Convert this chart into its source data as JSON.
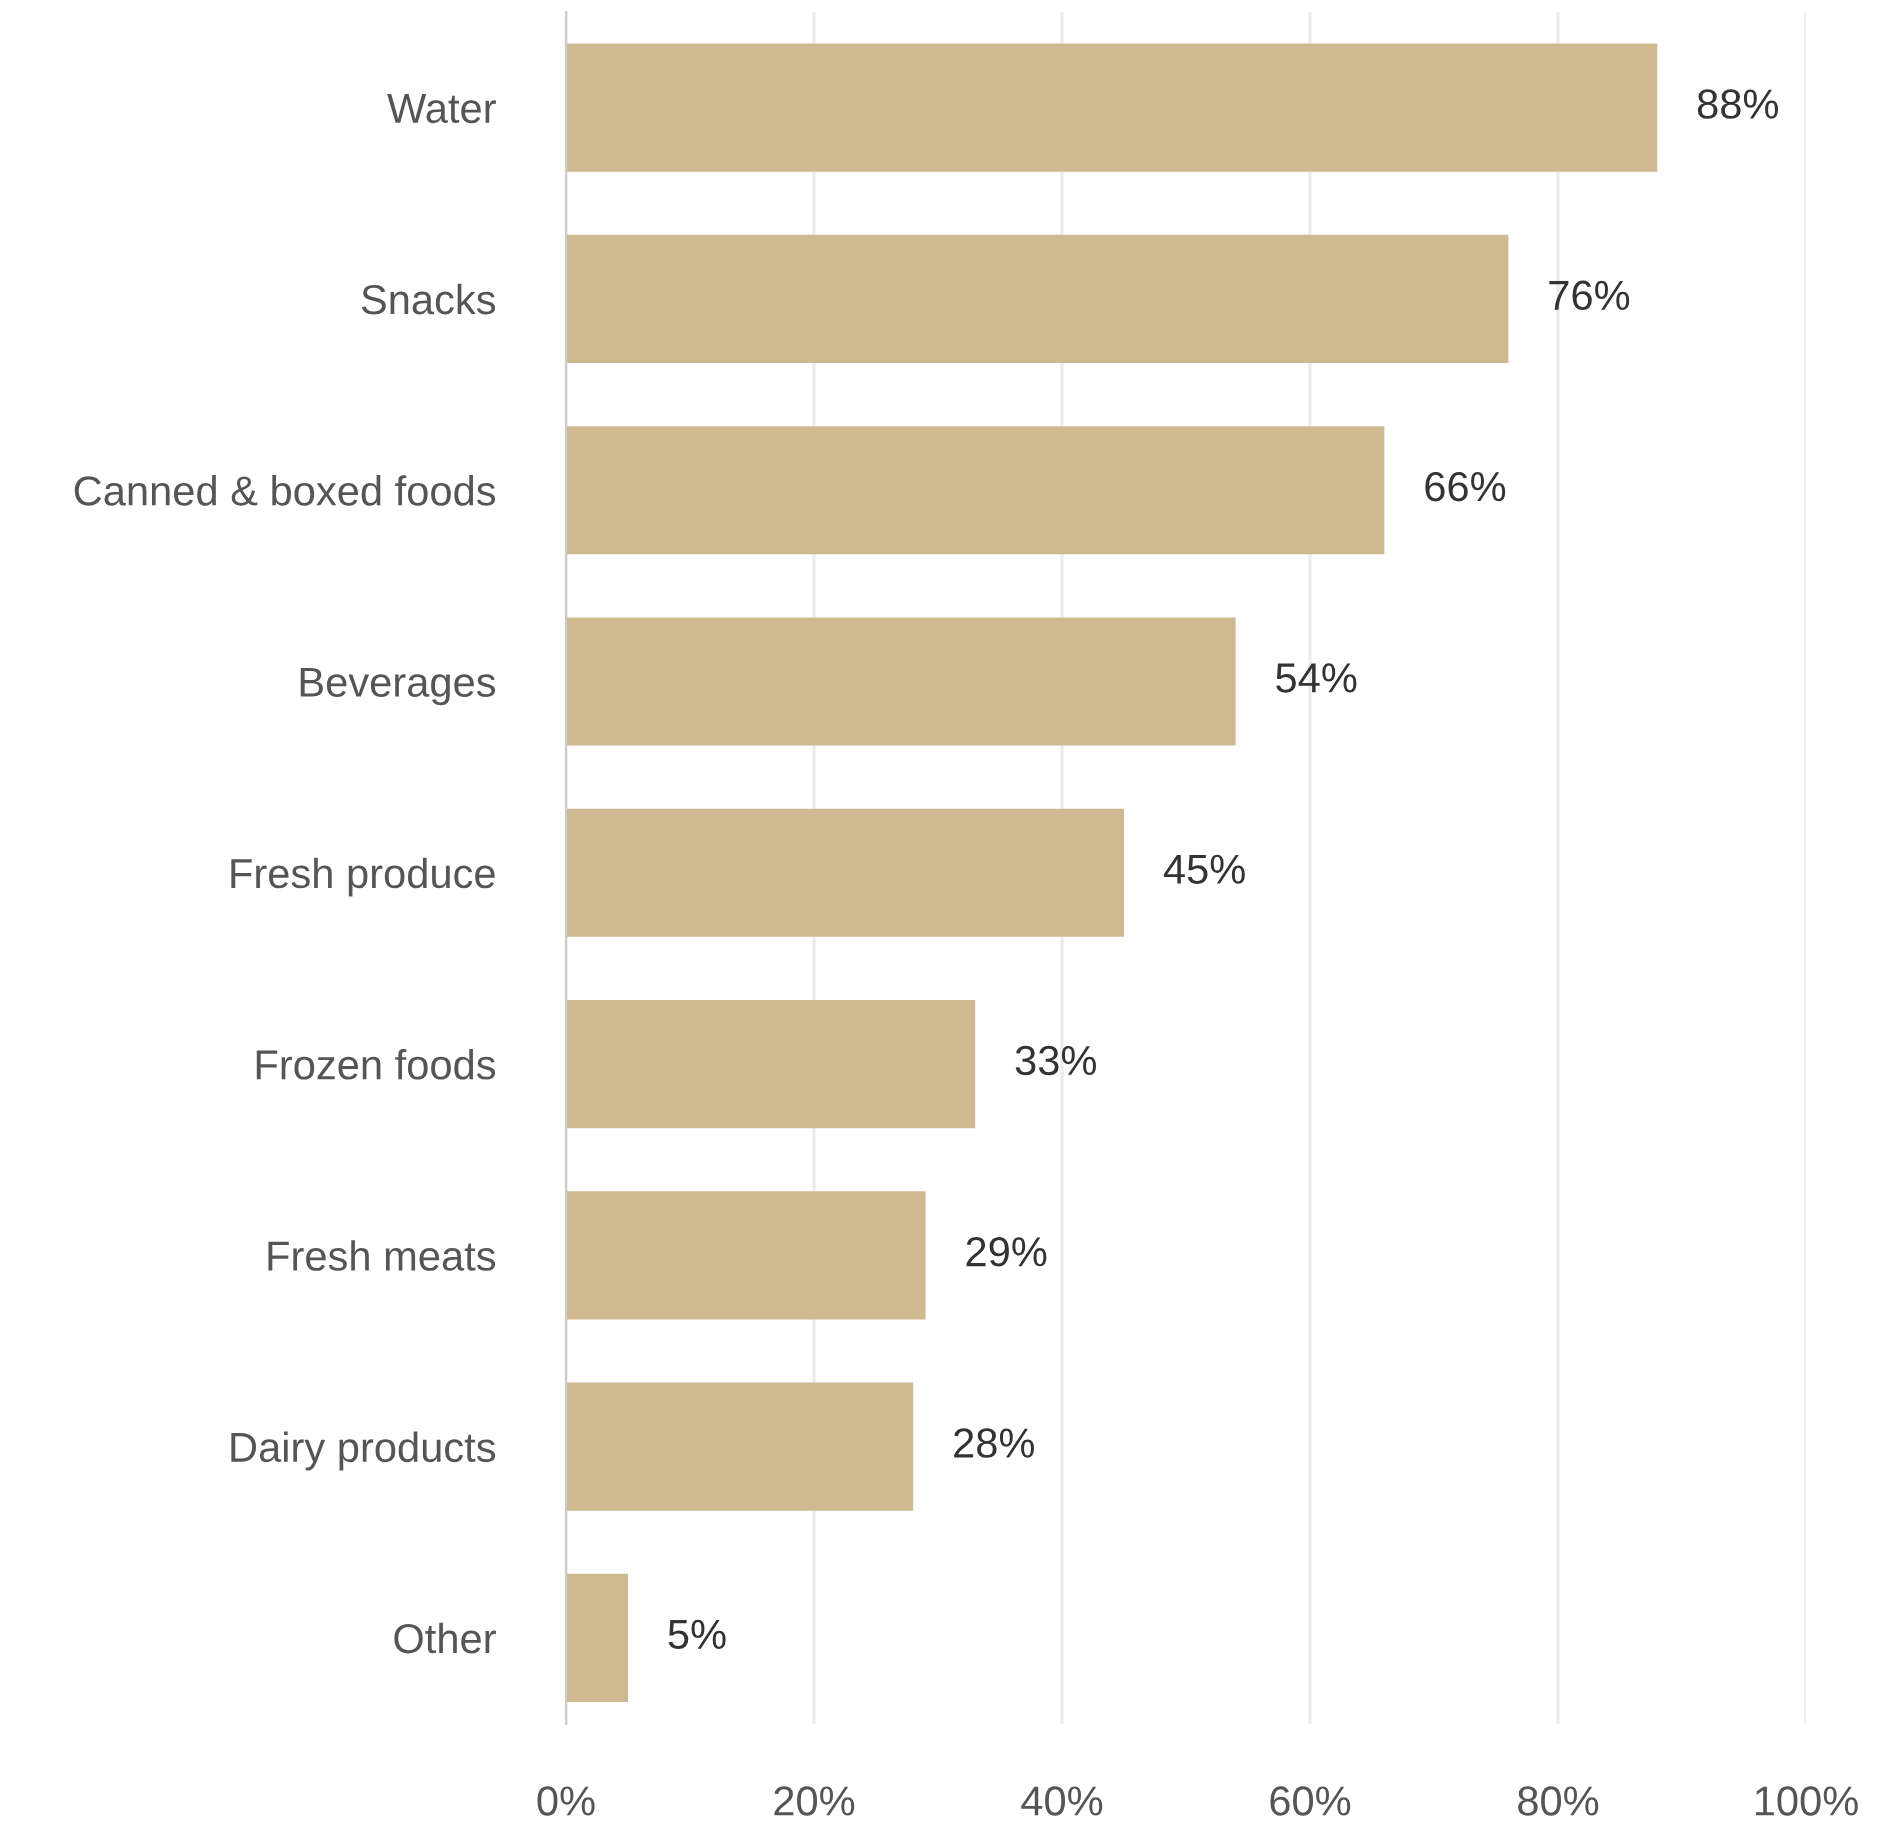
{
  "chart_data": {
    "type": "bar",
    "orientation": "horizontal",
    "categories": [
      "Water",
      "Snacks",
      "Canned & boxed foods",
      "Beverages",
      "Fresh produce",
      "Frozen foods",
      "Fresh meats",
      "Dairy products",
      "Other"
    ],
    "values": [
      88,
      76,
      66,
      54,
      45,
      33,
      29,
      28,
      5
    ],
    "value_labels": [
      "88%",
      "76%",
      "66%",
      "54%",
      "45%",
      "33%",
      "29%",
      "28%",
      "5%"
    ],
    "color": "#cfb991",
    "xlim": [
      0,
      100
    ],
    "xticks": [
      {
        "value": 0,
        "label": "0%"
      },
      {
        "value": 20,
        "label": "20%"
      },
      {
        "value": 40,
        "label": "40%"
      },
      {
        "value": 60,
        "label": "60%"
      },
      {
        "value": 80,
        "label": "80%"
      },
      {
        "value": 100,
        "label": "100%"
      }
    ],
    "grid": "x"
  }
}
